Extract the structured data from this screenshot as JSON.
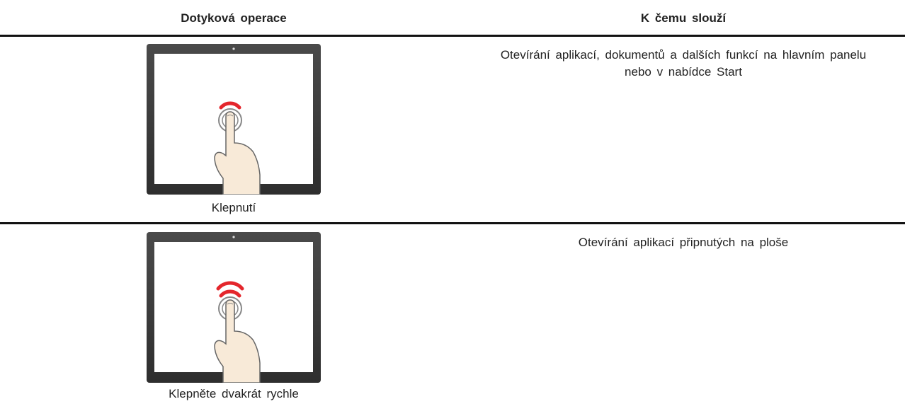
{
  "header": {
    "columns": [
      "Dotyková operace",
      "K čemu slouží"
    ]
  },
  "table": {
    "rows": [
      [
        "Klepnutí",
        "Otevírání aplikací, dokumentů a dalších funkcí na hlavním panelu nebo v nabídce Start"
      ],
      [
        "Klepněte dvakrát rychle",
        "Otevírání aplikací připnutých na ploše"
      ]
    ]
  }
}
